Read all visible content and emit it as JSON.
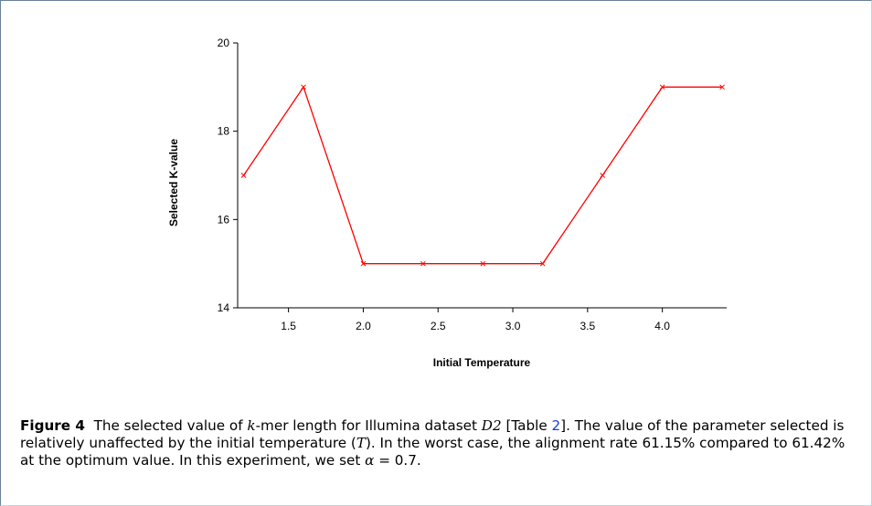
{
  "chart_data": {
    "type": "line",
    "x_label": "Initial Temperature",
    "y_label": "Selected K-value",
    "x": [
      1.2,
      1.6,
      2.0,
      2.4,
      2.8,
      3.2,
      3.6,
      4.0,
      4.4
    ],
    "series": [
      {
        "color": "#ff0000",
        "values": [
          17,
          19,
          15,
          15,
          15,
          15,
          17,
          19,
          19
        ]
      }
    ],
    "xlim": [
      1.16,
      4.43
    ],
    "xticks": [
      1.5,
      {
        "value": 2,
        "label": "2.0"
      },
      2.5,
      {
        "value": 3,
        "label": "3.0"
      },
      3.5,
      {
        "value": 4,
        "label": "4.0"
      }
    ],
    "ylim": [
      14,
      20
    ],
    "yticks": [
      14,
      16,
      18,
      20
    ],
    "grid": false
  },
  "caption": {
    "label": "Figure 4",
    "parts": [
      "The selected value of ",
      "k",
      "-mer length for Illumina dataset ",
      "D2",
      " [Table ",
      "2",
      "]. The value of the parameter selected is relatively unaffected by the initial temperature (",
      "T",
      "). In the worst case, the alignment rate 61.15% compared to 61.42% at the optimum value. In this experiment, we set ",
      "α",
      " = 0.7."
    ]
  }
}
